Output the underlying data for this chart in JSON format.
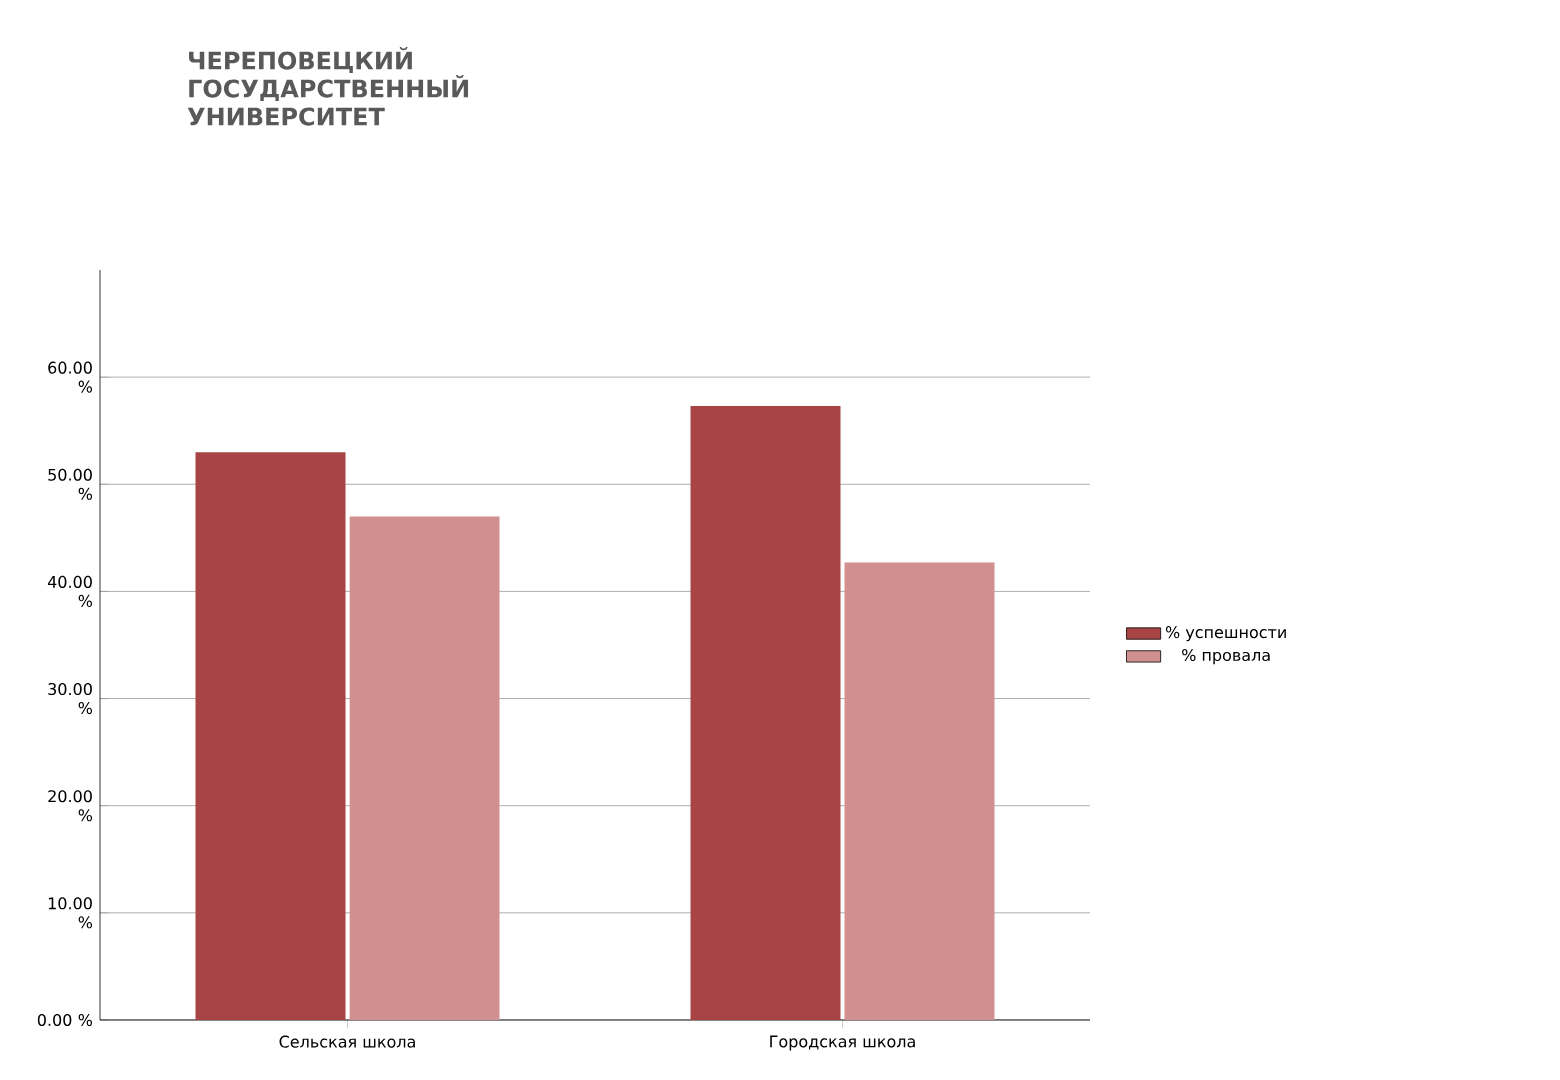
{
  "chart_data": {
    "type": "bar",
    "annotations": [
      "ЧЕРЕПОВЕЦКИЙ ГОСУДАРСТВЕННЫЙ УНИВЕРСИТЕТ"
    ],
    "categories": [
      "Сельская школа",
      "Городская школа"
    ],
    "series": [
      {
        "name": "% успешности",
        "color": "#a84444",
        "values": [
          53,
          57.3
        ]
      },
      {
        "name": "% провала",
        "color": "#d09090",
        "values": [
          47,
          42.7
        ]
      }
    ],
    "ylim": [
      0,
      70
    ],
    "yticks": [
      {
        "value": 0,
        "label": "0.00 %"
      },
      {
        "value": 10,
        "label": "10.00 %"
      },
      {
        "value": 20,
        "label": "20.00 %"
      },
      {
        "value": 30,
        "label": "30.00 %"
      },
      {
        "value": 40,
        "label": "40.00 %"
      },
      {
        "value": 50,
        "label": "50.00 %"
      },
      {
        "value": 60,
        "label": "60.00 %"
      }
    ],
    "grid": "y",
    "legend": "right"
  }
}
